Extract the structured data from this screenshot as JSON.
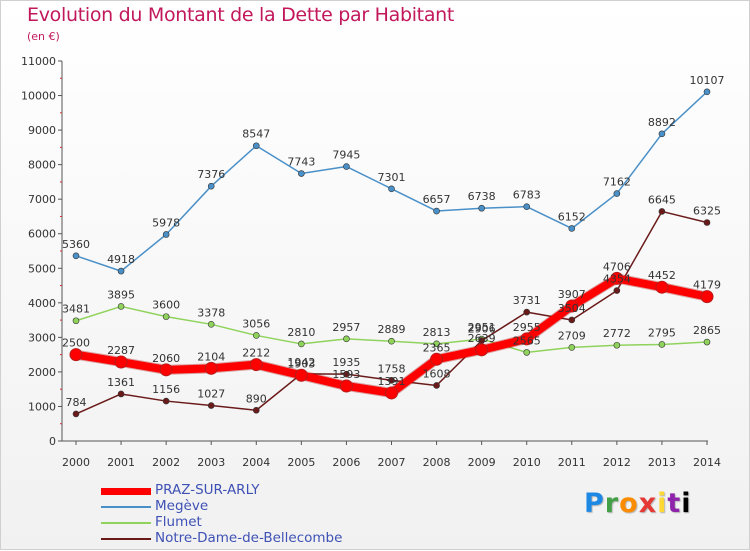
{
  "chart_data": {
    "type": "line",
    "title": "Evolution du Montant de la Dette par Habitant",
    "subtitle": "(en €)",
    "x": [
      "2000",
      "2001",
      "2002",
      "2003",
      "2004",
      "2005",
      "2006",
      "2007",
      "2008",
      "2009",
      "2010",
      "2011",
      "2012",
      "2013",
      "2014"
    ],
    "y_ticks": [
      "0",
      "1000",
      "2000",
      "3000",
      "4000",
      "5000",
      "6000",
      "7000",
      "8000",
      "9000",
      "10000",
      "11000"
    ],
    "ylim": [
      0,
      11000
    ],
    "grid": false,
    "legend_position": "bottom-left",
    "series": [
      {
        "name": "PRAZ-SUR-ARLY",
        "color": "#ff0000",
        "values": [
          2500,
          2287,
          2060,
          2104,
          2212,
          1903,
          1593,
          1391,
          2365,
          2639,
          2955,
          3907,
          4706,
          4452,
          4179
        ]
      },
      {
        "name": "Megève",
        "color": "#4a90c8",
        "values": [
          5360,
          4918,
          5978,
          7376,
          8547,
          7743,
          7945,
          7301,
          6657,
          6738,
          6783,
          6152,
          7162,
          8892,
          10107
        ]
      },
      {
        "name": "Flumet",
        "color": "#8fd35c",
        "values": [
          3481,
          3895,
          3600,
          3378,
          3056,
          2810,
          2957,
          2889,
          2813,
          2951,
          2565,
          2709,
          2772,
          2795,
          2865
        ]
      },
      {
        "name": "Notre-Dame-de-Bellecombe",
        "color": "#6b1a1a",
        "values": [
          784,
          1361,
          1156,
          1027,
          890,
          1942,
          1935,
          1758,
          1608,
          2906,
          3731,
          3504,
          4354,
          6645,
          6325
        ]
      }
    ]
  },
  "logo_letters": [
    "P",
    "r",
    "o",
    "x",
    "i",
    "t",
    "i"
  ]
}
